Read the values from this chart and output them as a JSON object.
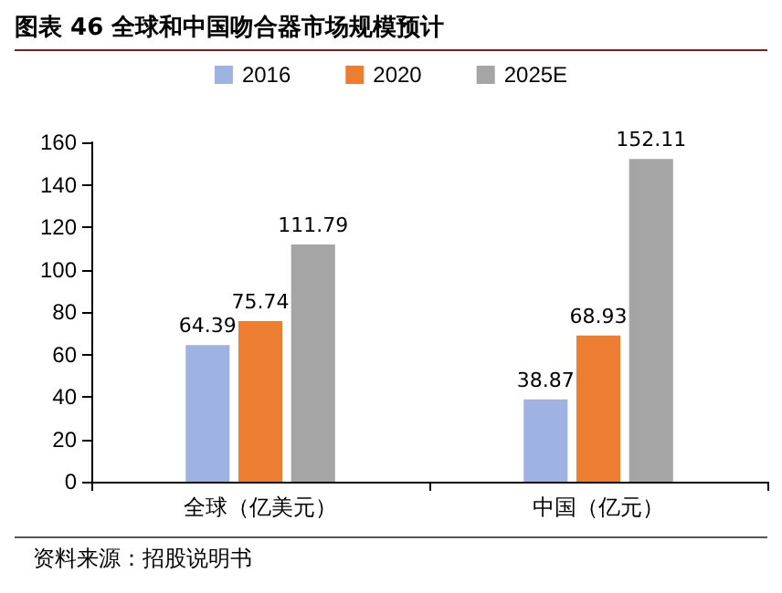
{
  "chart_data": {
    "type": "bar",
    "title": "图表 46  全球和中国吻合器市场规模预计",
    "categories": [
      "全球（亿美元）",
      "中国（亿元）"
    ],
    "series": [
      {
        "name": "2016",
        "color": "#9fb3e2",
        "values": [
          64.39,
          38.87
        ]
      },
      {
        "name": "2020",
        "color": "#ed7d31",
        "values": [
          75.74,
          68.93
        ]
      },
      {
        "name": "2025E",
        "color": "#a5a5a5",
        "values": [
          111.79,
          152.11
        ]
      }
    ],
    "ylim": [
      0,
      160
    ],
    "yticks": [
      0,
      20,
      40,
      60,
      80,
      100,
      120,
      140,
      160
    ],
    "data_labels": true,
    "grid": false,
    "legend": "top",
    "annotations": [
      "资料来源：招股说明书"
    ]
  }
}
